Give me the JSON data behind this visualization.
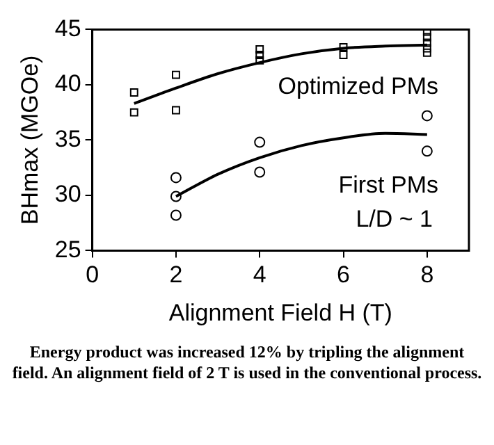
{
  "chart_data": {
    "type": "scatter",
    "xlabel": "Alignment Field H (T)",
    "ylabel": "BHmax (MGOe)",
    "xlim": [
      0,
      9
    ],
    "xticks": [
      0,
      2,
      4,
      6,
      8
    ],
    "ylim": [
      25,
      45
    ],
    "yticks": [
      25,
      30,
      35,
      40,
      45
    ],
    "grid": false,
    "legend": false,
    "series": [
      {
        "type": "scatter",
        "name": "Optimized PMs",
        "marker": "square",
        "color": "#000000",
        "x": [
          1,
          1,
          2,
          2,
          4,
          4,
          4,
          6,
          6,
          8,
          8,
          8,
          8,
          8
        ],
        "values": [
          39.3,
          37.5,
          40.9,
          37.7,
          43.2,
          42.7,
          42.2,
          43.4,
          42.7,
          42.9,
          43.3,
          43.8,
          44.3,
          44.8
        ]
      },
      {
        "type": "line",
        "marker": "none",
        "color": "#000000",
        "x": [
          1,
          2,
          3,
          4,
          5,
          6,
          7,
          8
        ],
        "values": [
          38.3,
          39.7,
          41.0,
          42.0,
          42.8,
          43.3,
          43.5,
          43.6
        ]
      },
      {
        "type": "scatter",
        "name": "First PMs",
        "marker": "circle",
        "color": "#000000",
        "x": [
          2,
          2,
          2,
          4,
          4,
          8,
          8
        ],
        "values": [
          31.6,
          29.9,
          28.2,
          34.8,
          32.1,
          37.2,
          34.0
        ]
      },
      {
        "type": "line",
        "marker": "none",
        "color": "#000000",
        "x": [
          2,
          3,
          4,
          5,
          6,
          7,
          8
        ],
        "values": [
          29.9,
          31.9,
          33.4,
          34.5,
          35.2,
          35.6,
          35.5
        ]
      }
    ],
    "annotations": [
      "L/D ~ 1",
      "Energy product was increased 12% by tripling the alignment field. An alignment field of 2 T is used in the conventional process."
    ]
  }
}
